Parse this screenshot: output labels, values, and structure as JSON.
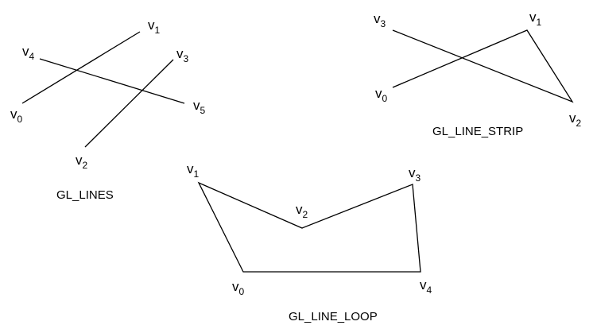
{
  "panels": [
    {
      "id": "gl-lines",
      "title": "GL_LINES",
      "vertices": [
        {
          "name": "v",
          "sub": "0"
        },
        {
          "name": "v",
          "sub": "1"
        },
        {
          "name": "v",
          "sub": "2"
        },
        {
          "name": "v",
          "sub": "3"
        },
        {
          "name": "v",
          "sub": "4"
        },
        {
          "name": "v",
          "sub": "5"
        }
      ]
    },
    {
      "id": "gl-line-strip",
      "title": "GL_LINE_STRIP",
      "vertices": [
        {
          "name": "v",
          "sub": "0"
        },
        {
          "name": "v",
          "sub": "1"
        },
        {
          "name": "v",
          "sub": "2"
        },
        {
          "name": "v",
          "sub": "3"
        }
      ]
    },
    {
      "id": "gl-line-loop",
      "title": "GL_LINE_LOOP",
      "vertices": [
        {
          "name": "v",
          "sub": "0"
        },
        {
          "name": "v",
          "sub": "1"
        },
        {
          "name": "v",
          "sub": "2"
        },
        {
          "name": "v",
          "sub": "3"
        },
        {
          "name": "v",
          "sub": "4"
        }
      ]
    }
  ]
}
